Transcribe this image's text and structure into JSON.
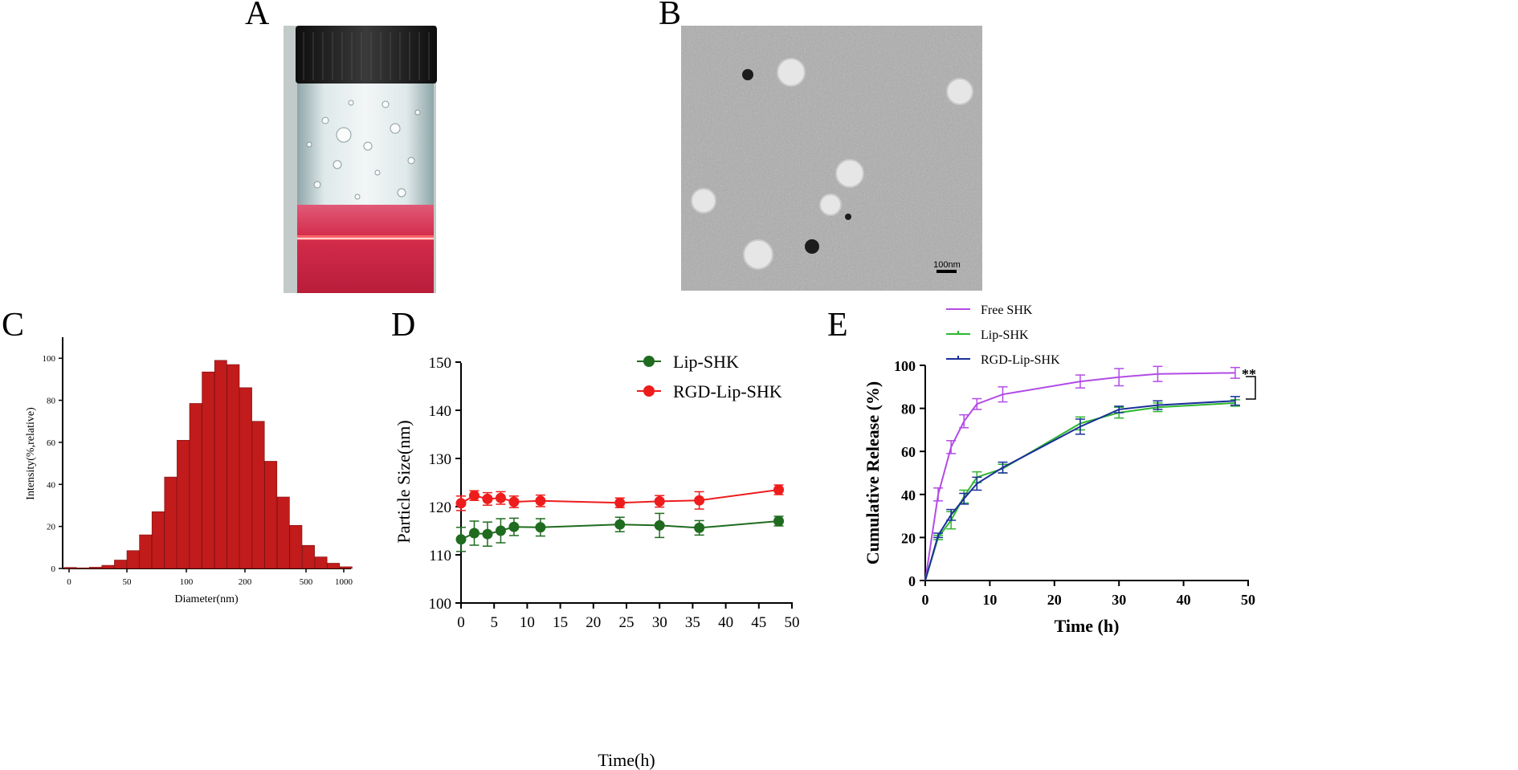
{
  "panels": {
    "a": {
      "label": "A"
    },
    "b": {
      "label": "B",
      "scale_bar": "100nm"
    },
    "c": {
      "label": "C"
    },
    "d": {
      "label": "D"
    },
    "e": {
      "label": "E",
      "significance": "**"
    }
  },
  "colors": {
    "bar_fill": "#c11b1b",
    "lip_shk_green": "#1f6b1f",
    "rgd_red": "#ee1c1c",
    "free_shk": "#b24be6",
    "lip_shk_e": "#2fb52f",
    "rgd_blue": "#1a2f9a",
    "liquid": "#d0304c",
    "cap": "#1d1d1d"
  },
  "chart_data": [
    {
      "panel": "C",
      "type": "bar",
      "xlabel": "Diameter(nm)",
      "ylabel": "Intensity(%,relative)",
      "ylim": [
        0,
        110
      ],
      "yticks": [
        "0",
        "20",
        "40",
        "60",
        "80",
        "100"
      ],
      "xticks": [
        "0",
        "50",
        "100",
        "200",
        "500",
        "1000"
      ],
      "values": [
        0.5,
        0.3,
        0.6,
        1.5,
        4,
        8.5,
        16,
        27,
        43.5,
        61,
        78.5,
        93.5,
        99,
        97,
        86,
        70,
        51,
        34,
        20.5,
        11,
        5.5,
        2.5,
        0.8
      ]
    },
    {
      "panel": "D",
      "type": "line",
      "xlabel": "Time(h)",
      "ylabel": "Particle Size(nm)",
      "xlim": [
        0,
        50
      ],
      "ylim": [
        100,
        150
      ],
      "xticks": [
        "0",
        "5",
        "10",
        "15",
        "20",
        "25",
        "30",
        "35",
        "40",
        "45",
        "50"
      ],
      "yticks": [
        "100",
        "110",
        "120",
        "130",
        "140",
        "150"
      ],
      "legend_position": "top-right",
      "series": [
        {
          "name": "Lip-SHK",
          "color": "#1f6b1f",
          "x": [
            0,
            2,
            4,
            6,
            8,
            12,
            24,
            30,
            36,
            48
          ],
          "y": [
            113.2,
            114.5,
            114.3,
            115.0,
            115.8,
            115.7,
            116.3,
            116.1,
            115.6,
            117.0
          ],
          "err": [
            2.5,
            2.5,
            2.5,
            2.5,
            1.8,
            1.8,
            1.5,
            2.5,
            1.5,
            1.0
          ]
        },
        {
          "name": "RGD-Lip-SHK",
          "color": "#ee1c1c",
          "x": [
            0,
            2,
            4,
            6,
            8,
            12,
            24,
            30,
            36,
            48
          ],
          "y": [
            120.7,
            122.3,
            121.6,
            121.8,
            121.0,
            121.2,
            120.8,
            121.1,
            121.3,
            123.5
          ],
          "err": [
            1.5,
            1.0,
            1.3,
            1.3,
            1.2,
            1.2,
            1.0,
            1.2,
            1.8,
            1.0
          ]
        }
      ]
    },
    {
      "panel": "E",
      "type": "line",
      "xlabel": "Time (h)",
      "ylabel": "Cumulative Release (%)",
      "xlim": [
        0,
        50
      ],
      "ylim": [
        0,
        100
      ],
      "xticks": [
        "0",
        "10",
        "20",
        "30",
        "40",
        "50"
      ],
      "yticks": [
        "0",
        "20",
        "40",
        "60",
        "80",
        "100"
      ],
      "legend_position": "top-left",
      "series": [
        {
          "name": "Free SHK",
          "color": "#b24be6",
          "x": [
            0,
            2,
            4,
            6,
            8,
            12,
            24,
            30,
            36,
            48
          ],
          "y": [
            0,
            40,
            62,
            74,
            82,
            86.5,
            92.5,
            94.5,
            96,
            96.5
          ],
          "err": [
            0,
            3,
            3,
            3,
            2.5,
            3.5,
            3,
            4,
            3.5,
            2.5
          ]
        },
        {
          "name": "Lip-SHK",
          "color": "#2fb52f",
          "x": [
            0,
            2,
            4,
            6,
            8,
            12,
            24,
            30,
            36,
            48
          ],
          "y": [
            0,
            20,
            28,
            39,
            48,
            52,
            73,
            78,
            80.5,
            82.5
          ],
          "err": [
            0,
            1,
            4,
            3,
            2.5,
            2,
            3,
            2.5,
            2,
            1.5
          ]
        },
        {
          "name": "RGD-Lip-SHK",
          "color": "#1a2f9a",
          "x": [
            0,
            2,
            4,
            6,
            8,
            12,
            24,
            30,
            36,
            48
          ],
          "y": [
            0,
            21,
            30.5,
            38,
            45,
            52.5,
            71.5,
            79.5,
            81.5,
            83.5
          ],
          "err": [
            0,
            1,
            2.5,
            2.5,
            3,
            2.5,
            3.5,
            1.5,
            2,
            2
          ]
        }
      ]
    }
  ]
}
